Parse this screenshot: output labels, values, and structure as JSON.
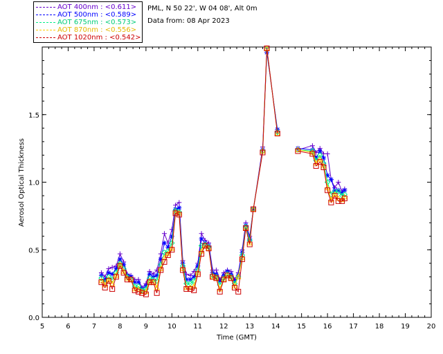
{
  "info": {
    "location": "PML, N 50 22', W 04 08', Alt 0m",
    "date": "Data from: 08 Apr 2023"
  },
  "chart_data": {
    "type": "line",
    "xlabel": "Time (GMT)",
    "ylabel": "Aerosol Optical Thickness",
    "xlim": [
      5,
      20
    ],
    "ylim": [
      0,
      2.0
    ],
    "xticks": [
      "5",
      "6",
      "7",
      "8",
      "9",
      "10",
      "11",
      "12",
      "13",
      "14",
      "15",
      "16",
      "17",
      "18",
      "19",
      "20"
    ],
    "yticks": [
      "0.0",
      "0.5",
      "1.0",
      "1.5"
    ],
    "legend_position": "top-left",
    "x": [
      7.28,
      7.42,
      7.56,
      7.7,
      7.85,
      8.0,
      8.14,
      8.28,
      8.42,
      8.57,
      8.71,
      8.85,
      9.0,
      9.14,
      9.28,
      9.42,
      9.57,
      9.71,
      9.85,
      10.0,
      10.14,
      10.28,
      10.42,
      10.56,
      10.71,
      10.85,
      11.0,
      11.14,
      11.28,
      11.42,
      11.57,
      11.71,
      11.85,
      12.0,
      12.14,
      12.28,
      12.42,
      12.56,
      12.71,
      12.85,
      13.0,
      13.14,
      13.5,
      13.66,
      14.07,
      14.86,
      15.42,
      15.56,
      15.71,
      15.85,
      16.0,
      16.14,
      16.28,
      16.42,
      16.56,
      16.66
    ],
    "series": [
      {
        "name": "AOT  400nm : <0.611>",
        "color": "#6600cc",
        "marker": "plus",
        "values": [
          0.33,
          0.3,
          0.36,
          0.37,
          0.38,
          0.47,
          0.41,
          0.32,
          0.31,
          0.28,
          0.28,
          0.22,
          0.25,
          0.34,
          0.32,
          0.35,
          0.47,
          0.62,
          0.55,
          0.65,
          0.83,
          0.85,
          0.42,
          0.32,
          0.31,
          0.34,
          0.4,
          0.62,
          0.57,
          0.55,
          0.35,
          0.35,
          0.28,
          0.33,
          0.35,
          0.34,
          0.28,
          0.33,
          0.5,
          0.7,
          0.6,
          0.8,
          1.26,
          1.99,
          1.37,
          1.24,
          1.27,
          1.22,
          1.25,
          1.21,
          1.21,
          1.02,
          0.96,
          1.0,
          0.93,
          0.95
        ]
      },
      {
        "name": "AOT  500nm : <0.589>",
        "color": "#0000ff",
        "marker": "star",
        "values": [
          0.31,
          0.28,
          0.33,
          0.32,
          0.36,
          0.43,
          0.39,
          0.31,
          0.3,
          0.26,
          0.26,
          0.21,
          0.23,
          0.32,
          0.3,
          0.31,
          0.43,
          0.55,
          0.52,
          0.6,
          0.8,
          0.81,
          0.4,
          0.28,
          0.28,
          0.3,
          0.38,
          0.58,
          0.55,
          0.53,
          0.33,
          0.32,
          0.27,
          0.31,
          0.34,
          0.32,
          0.27,
          0.31,
          0.48,
          0.68,
          0.58,
          0.8,
          1.24,
          1.96,
          1.39,
          1.25,
          1.24,
          1.18,
          1.23,
          1.18,
          1.05,
          1.02,
          0.94,
          0.94,
          0.92,
          0.94
        ]
      },
      {
        "name": "AOT  675nm : <0.573>",
        "color": "#00ee88",
        "marker": "diamond",
        "values": [
          0.29,
          0.26,
          0.3,
          0.28,
          0.33,
          0.4,
          0.36,
          0.3,
          0.28,
          0.23,
          0.23,
          0.2,
          0.21,
          0.29,
          0.28,
          0.27,
          0.39,
          0.48,
          0.49,
          0.55,
          0.79,
          0.78,
          0.38,
          0.25,
          0.25,
          0.27,
          0.35,
          0.53,
          0.54,
          0.52,
          0.31,
          0.3,
          0.24,
          0.29,
          0.32,
          0.3,
          0.25,
          0.3,
          0.46,
          0.67,
          0.57,
          0.8,
          1.23,
          1.98,
          1.37,
          1.24,
          1.23,
          1.16,
          1.2,
          1.14,
          1.0,
          0.91,
          0.93,
          0.93,
          0.9,
          0.91
        ]
      },
      {
        "name": "AOT  870nm : <0.556>",
        "color": "#ffcc00",
        "marker": "triangle",
        "values": [
          0.27,
          0.24,
          0.28,
          0.25,
          0.31,
          0.39,
          0.34,
          0.29,
          0.28,
          0.21,
          0.21,
          0.19,
          0.19,
          0.27,
          0.26,
          0.22,
          0.36,
          0.44,
          0.47,
          0.51,
          0.78,
          0.77,
          0.36,
          0.22,
          0.22,
          0.23,
          0.33,
          0.49,
          0.53,
          0.51,
          0.3,
          0.29,
          0.21,
          0.28,
          0.31,
          0.29,
          0.23,
          0.3,
          0.44,
          0.66,
          0.55,
          0.8,
          1.23,
          1.99,
          1.36,
          1.24,
          1.22,
          1.14,
          1.17,
          1.12,
          0.96,
          0.87,
          0.91,
          0.88,
          0.87,
          0.89
        ]
      },
      {
        "name": "AOT 1020nm : <0.542>",
        "color": "#cc0000",
        "marker": "square",
        "values": [
          0.26,
          0.22,
          0.27,
          0.21,
          0.3,
          0.38,
          0.33,
          0.28,
          0.28,
          0.2,
          0.19,
          0.18,
          0.17,
          0.26,
          0.26,
          0.18,
          0.35,
          0.41,
          0.46,
          0.5,
          0.77,
          0.76,
          0.35,
          0.21,
          0.21,
          0.2,
          0.32,
          0.47,
          0.53,
          0.51,
          0.3,
          0.29,
          0.19,
          0.28,
          0.31,
          0.29,
          0.22,
          0.19,
          0.43,
          0.66,
          0.54,
          0.8,
          1.22,
          1.99,
          1.36,
          1.23,
          1.21,
          1.12,
          1.15,
          1.11,
          0.94,
          0.85,
          0.9,
          0.86,
          0.86,
          0.88
        ]
      }
    ]
  }
}
